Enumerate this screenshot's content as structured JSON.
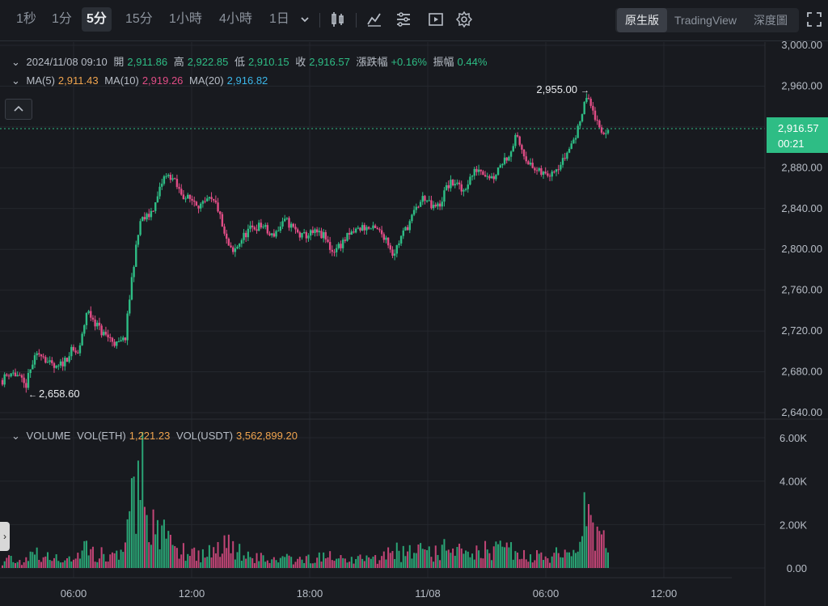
{
  "toolbar": {
    "timeframes": [
      "1秒",
      "1分",
      "5分",
      "15分",
      "1小時",
      "4小時",
      "1日"
    ],
    "active_timeframe": "5分",
    "icons": [
      "chevron-down-icon",
      "candlestick-type-icon",
      "indicator-icon",
      "list-settings-icon",
      "replay-icon",
      "gear-icon",
      "fullscreen-icon"
    ],
    "views": [
      "原生版",
      "TradingView",
      "深度圖"
    ],
    "active_view": "原生版"
  },
  "info_bar": {
    "datetime": "2024/11/08 09:10",
    "open_label": "開",
    "open": "2,911.86",
    "high_label": "高",
    "high": "2,922.85",
    "low_label": "低",
    "low": "2,910.15",
    "close_label": "收",
    "close": "2,916.57",
    "change_label": "漲跌幅",
    "change": "+0.16%",
    "amplitude_label": "振幅",
    "amplitude": "0.44%"
  },
  "ma_bar": {
    "ma5_label": "MA(5)",
    "ma5": "2,911.43",
    "ma10_label": "MA(10)",
    "ma10": "2,919.26",
    "ma20_label": "MA(20)",
    "ma20": "2,916.82"
  },
  "volume_bar": {
    "title": "VOLUME",
    "vol_eth_label": "VOL(ETH)",
    "vol_eth": "1,221.23",
    "vol_usdt_label": "VOL(USDT)",
    "vol_usdt": "3,562,899.20"
  },
  "current_price": {
    "price": "2,916.57",
    "countdown": "00:21"
  },
  "colors": {
    "up": "#2ebd85",
    "down": "#e14d86",
    "ma5": "#f0a44e",
    "ma10": "#e14d86",
    "ma20": "#3bb6e8",
    "background": "#181a1f",
    "grid": "#24272d"
  },
  "chart_data": {
    "type": "candlestick",
    "price_axis": {
      "ticks": [
        3000,
        2960,
        2920,
        2880,
        2840,
        2800,
        2760,
        2720,
        2680,
        2640
      ],
      "labels": [
        "3,000.00",
        "2,960.00",
        "2,920.00",
        "2,880.00",
        "2,840.00",
        "2,800.00",
        "2,760.00",
        "2,720.00",
        "2,680.00",
        "2,640.00"
      ],
      "range": [
        2640,
        3000
      ]
    },
    "volume_axis": {
      "ticks": [
        6000,
        4000,
        2000,
        0
      ],
      "labels": [
        "6.00K",
        "4.00K",
        "2.00K",
        "0.00"
      ],
      "range": [
        0,
        6000
      ]
    },
    "time_axis": {
      "ticks": [
        "06:00",
        "12:00",
        "18:00",
        "11/08",
        "06:00",
        "12:00"
      ]
    },
    "annotations": {
      "high": "2,955.00",
      "low": "2,658.60"
    },
    "price_path": [
      2672,
      2680,
      2676,
      2665,
      2690,
      2700,
      2688,
      2682,
      2690,
      2700,
      2698,
      2740,
      2730,
      2718,
      2713,
      2706,
      2712,
      2780,
      2828,
      2832,
      2845,
      2870,
      2872,
      2858,
      2850,
      2848,
      2842,
      2848,
      2843,
      2812,
      2795,
      2808,
      2818,
      2822,
      2823,
      2812,
      2820,
      2828,
      2820,
      2812,
      2815,
      2816,
      2812,
      2798,
      2804,
      2812,
      2818,
      2822,
      2820,
      2818,
      2812,
      2795,
      2812,
      2825,
      2840,
      2852,
      2840,
      2843,
      2862,
      2866,
      2856,
      2870,
      2880,
      2875,
      2870,
      2885,
      2892,
      2910,
      2895,
      2880,
      2875,
      2873,
      2880,
      2885,
      2900,
      2915,
      2950,
      2938,
      2912,
      2917
    ],
    "volume_path": [
      300,
      500,
      350,
      400,
      700,
      600,
      500,
      450,
      400,
      550,
      700,
      1000,
      800,
      650,
      700,
      600,
      900,
      3500,
      5500,
      2500,
      2000,
      1600,
      1300,
      1000,
      900,
      800,
      700,
      800,
      900,
      1500,
      1200,
      800,
      700,
      600,
      500,
      400,
      450,
      500,
      400,
      350,
      500,
      600,
      500,
      700,
      450,
      400,
      500,
      500,
      400,
      500,
      700,
      1100,
      700,
      900,
      1000,
      800,
      700,
      800,
      1000,
      900,
      700,
      900,
      1000,
      900,
      700,
      1100,
      900,
      800,
      700,
      650,
      600,
      700,
      650,
      800,
      700,
      1100,
      2600,
      1900,
      1300,
      1222
    ]
  }
}
